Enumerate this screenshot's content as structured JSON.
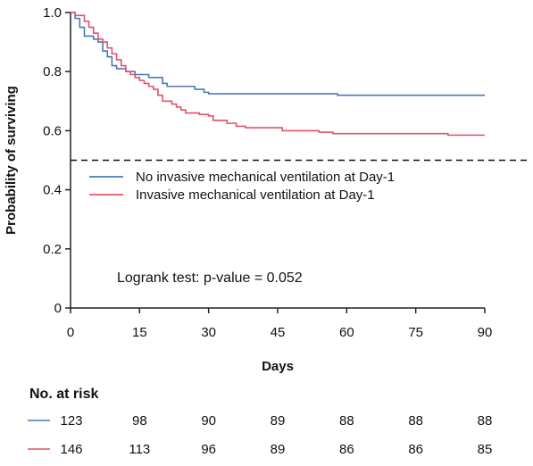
{
  "chart_data": {
    "type": "line",
    "step": true,
    "ylabel": "Probability of surviving",
    "xlabel": "Days",
    "xlim": [
      0,
      90
    ],
    "ylim": [
      0,
      1
    ],
    "x_ticks": [
      0,
      15,
      30,
      45,
      60,
      75,
      90
    ],
    "y_ticks": [
      0,
      0.2,
      0.4,
      0.6,
      0.8,
      1.0
    ],
    "y_tick_labels": [
      "0",
      "0.2",
      "0.4",
      "0.6",
      "0.8",
      "1.0"
    ],
    "reference_line": {
      "y": 0.5,
      "style": "dashed"
    },
    "legend_position": "center-left",
    "annotation": "Logrank test: p-value = 0.052",
    "grid": false,
    "series": [
      {
        "name": "No invasive mechanical ventilation at Day-1",
        "color": "#4a78b5",
        "points": [
          [
            0,
            1.0
          ],
          [
            1,
            0.98
          ],
          [
            2,
            0.95
          ],
          [
            3,
            0.92
          ],
          [
            5,
            0.91
          ],
          [
            6,
            0.9
          ],
          [
            7,
            0.87
          ],
          [
            8,
            0.85
          ],
          [
            9,
            0.82
          ],
          [
            10,
            0.81
          ],
          [
            12,
            0.8
          ],
          [
            14,
            0.79
          ],
          [
            17,
            0.78
          ],
          [
            20,
            0.76
          ],
          [
            21,
            0.75
          ],
          [
            27,
            0.74
          ],
          [
            29,
            0.73
          ],
          [
            30,
            0.725
          ],
          [
            58,
            0.72
          ],
          [
            90,
            0.72
          ]
        ]
      },
      {
        "name": "Invasive mechanical ventilation at Day-1",
        "color": "#e0546a",
        "points": [
          [
            0,
            1.0
          ],
          [
            1,
            0.99
          ],
          [
            3,
            0.97
          ],
          [
            4,
            0.95
          ],
          [
            5,
            0.93
          ],
          [
            6,
            0.91
          ],
          [
            7,
            0.9
          ],
          [
            8,
            0.88
          ],
          [
            9,
            0.86
          ],
          [
            10,
            0.84
          ],
          [
            11,
            0.82
          ],
          [
            12,
            0.8
          ],
          [
            13,
            0.79
          ],
          [
            14,
            0.78
          ],
          [
            15,
            0.77
          ],
          [
            16,
            0.76
          ],
          [
            17,
            0.75
          ],
          [
            18,
            0.74
          ],
          [
            19,
            0.72
          ],
          [
            20,
            0.7
          ],
          [
            22,
            0.69
          ],
          [
            23,
            0.68
          ],
          [
            24,
            0.67
          ],
          [
            25,
            0.66
          ],
          [
            28,
            0.655
          ],
          [
            30,
            0.65
          ],
          [
            31,
            0.635
          ],
          [
            34,
            0.625
          ],
          [
            36,
            0.615
          ],
          [
            38,
            0.61
          ],
          [
            46,
            0.6
          ],
          [
            54,
            0.595
          ],
          [
            57,
            0.59
          ],
          [
            82,
            0.585
          ],
          [
            90,
            0.585
          ]
        ]
      }
    ]
  },
  "risk_table": {
    "title": "No. at risk",
    "times": [
      0,
      15,
      30,
      45,
      60,
      75,
      90
    ],
    "rows": [
      {
        "color": "#4a78b5",
        "values": [
          "123",
          "98",
          "90",
          "89",
          "88",
          "88",
          "88"
        ]
      },
      {
        "color": "#e0546a",
        "values": [
          "146",
          "113",
          "96",
          "89",
          "86",
          "86",
          "85"
        ]
      }
    ]
  }
}
